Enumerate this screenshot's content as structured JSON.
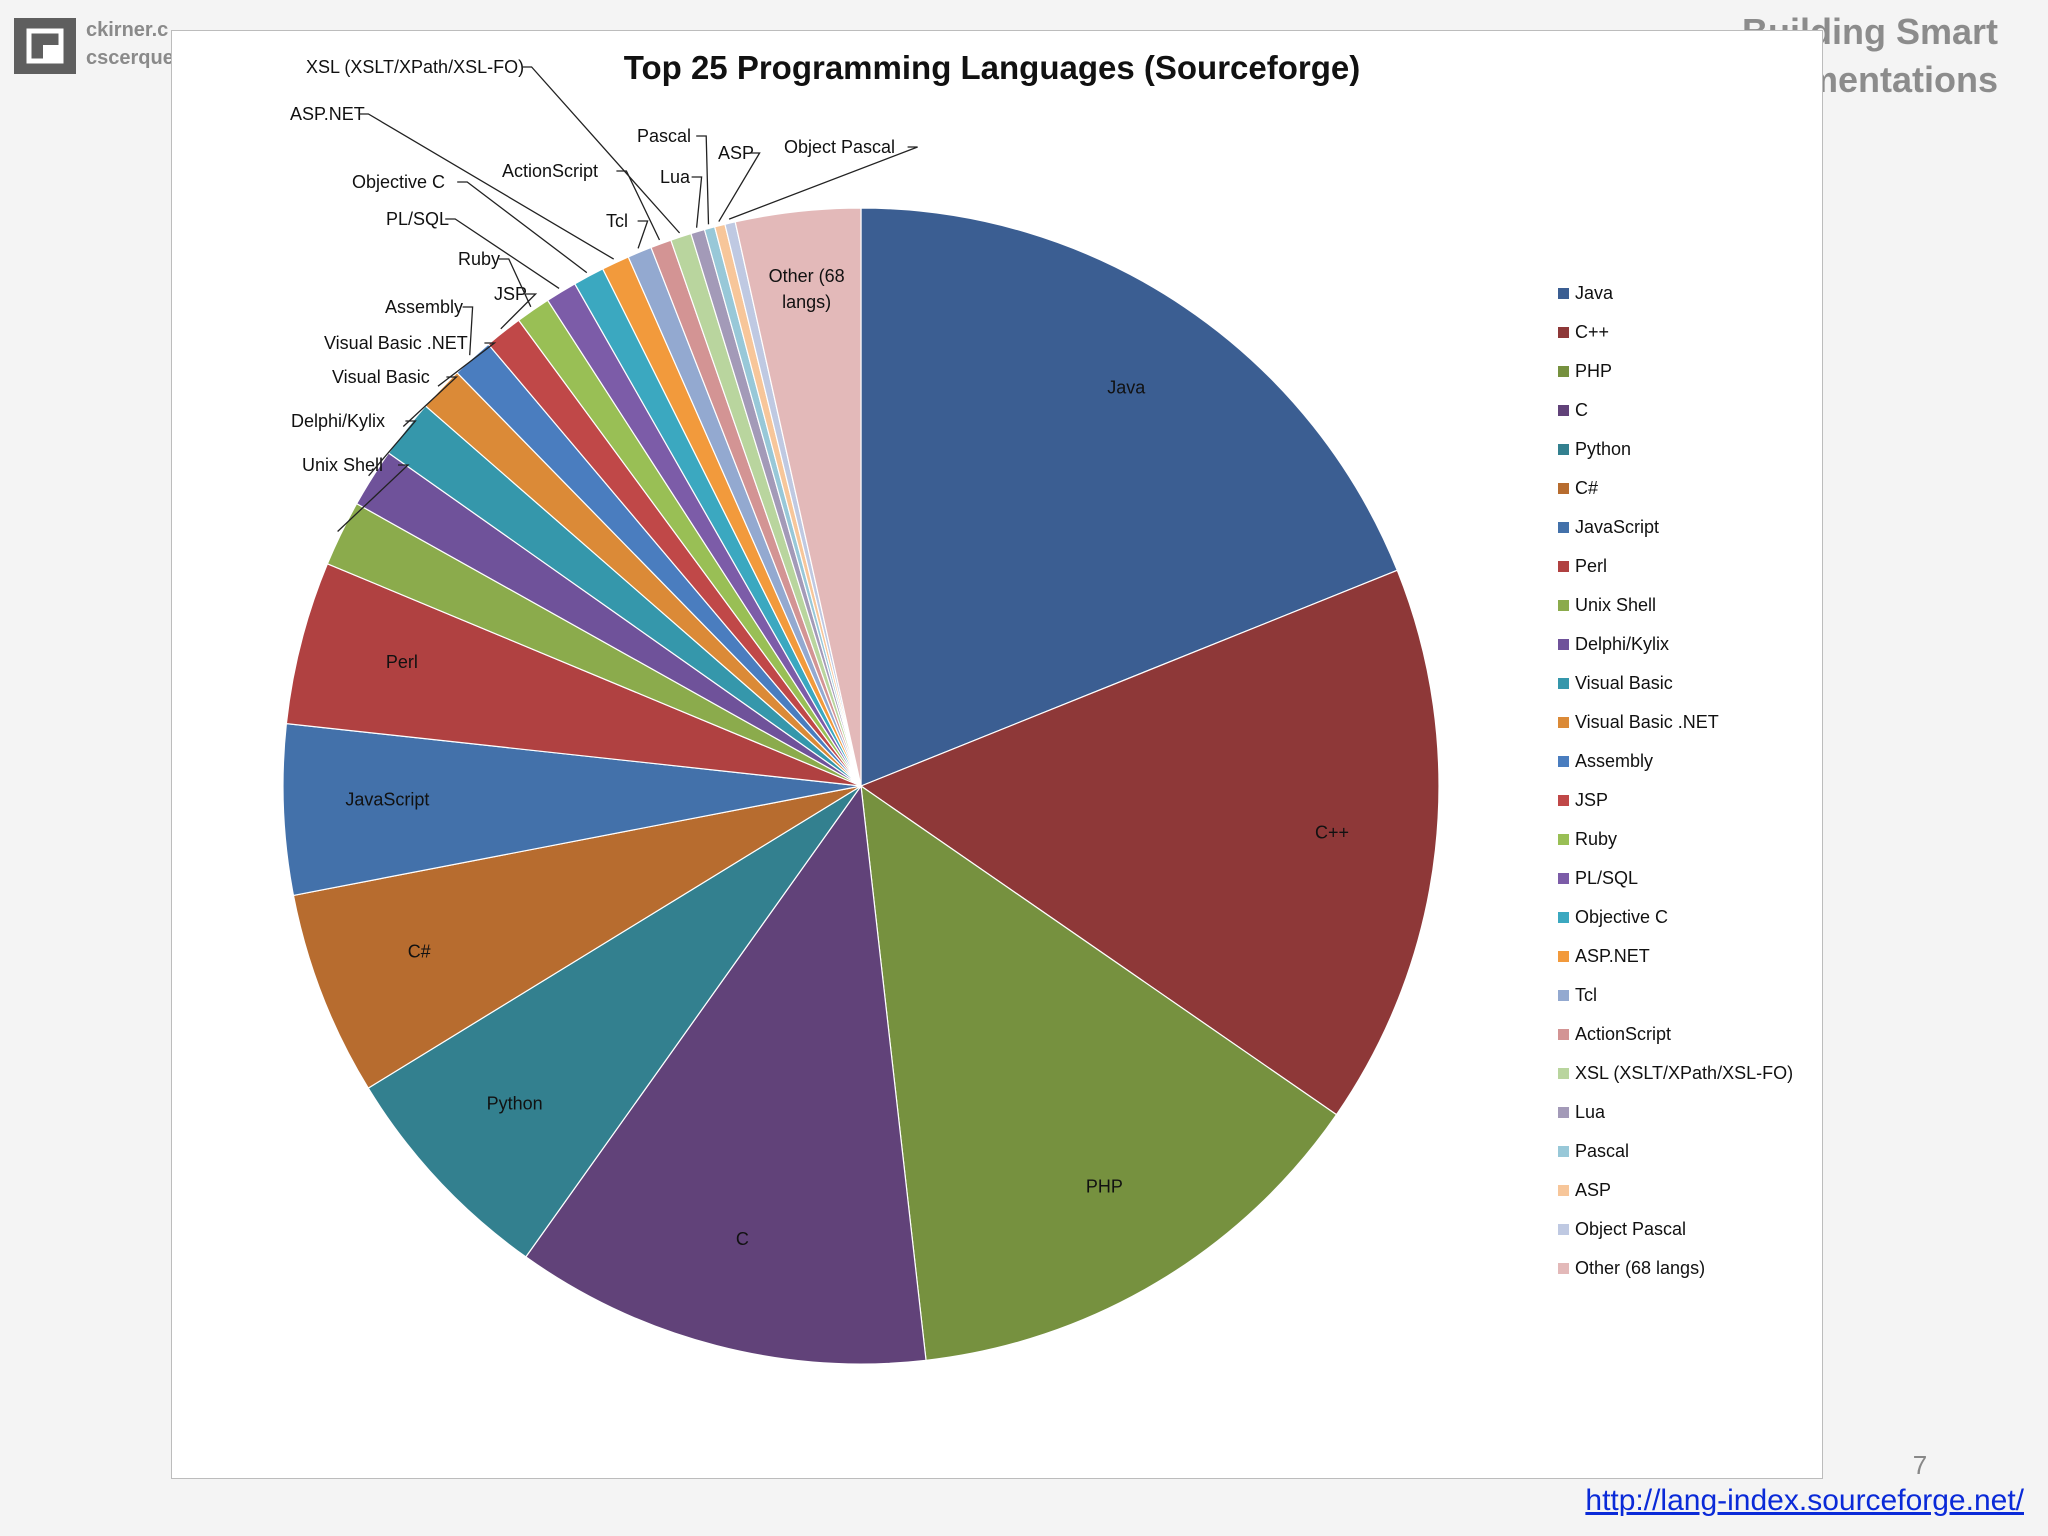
{
  "header": {
    "left_line1": "ckirner.c",
    "left_line2": "cscerque",
    "right_line1": "Building Smart",
    "right_line2": "mentations"
  },
  "slide_number": "7",
  "source_link": "http://lang-index.sourceforge.net/",
  "colors": {
    "link": "#0a2ad8",
    "panel_border": "#bcbcbc"
  },
  "chart_data": {
    "type": "pie",
    "title": "Top 25 Programming Languages (Sourceforge)",
    "legend_position": "right",
    "slices": [
      {
        "label": "Java",
        "value": 19.5,
        "color": "#3b5e92",
        "slice_label": "Java"
      },
      {
        "label": "C++",
        "value": 16.2,
        "color": "#8e3838",
        "slice_label": "C++"
      },
      {
        "label": "PHP",
        "value": 14.0,
        "color": "#76913f",
        "slice_label": "PHP"
      },
      {
        "label": "C",
        "value": 12.0,
        "color": "#614279",
        "slice_label": "C"
      },
      {
        "label": "Python",
        "value": 6.6,
        "color": "#33808f",
        "slice_label": "Python"
      },
      {
        "label": "C#",
        "value": 5.9,
        "color": "#b76c2f",
        "slice_label": "C#"
      },
      {
        "label": "JavaScript",
        "value": 4.9,
        "color": "#4371aa",
        "slice_label": "JavaScript"
      },
      {
        "label": "Perl",
        "value": 4.7,
        "color": "#b04141",
        "slice_label": "Perl"
      },
      {
        "label": "Unix Shell",
        "value": 1.9,
        "color": "#8bab4c",
        "slice_label": "Unix Shell"
      },
      {
        "label": "Delphi/Kylix",
        "value": 1.7,
        "color": "#6f529a",
        "slice_label": "Delphi/Kylix"
      },
      {
        "label": "Visual Basic",
        "value": 1.7,
        "color": "#3597ab",
        "slice_label": "Visual Basic"
      },
      {
        "label": "Visual Basic .NET",
        "value": 1.3,
        "color": "#db8a37",
        "slice_label": "Visual Basic .NET"
      },
      {
        "label": "Assembly",
        "value": 1.2,
        "color": "#4a7dbf",
        "slice_label": "Assembly"
      },
      {
        "label": "JSP",
        "value": 1.1,
        "color": "#c04848",
        "slice_label": "JSP"
      },
      {
        "label": "Ruby",
        "value": 1.0,
        "color": "#99bf55",
        "slice_label": "Ruby"
      },
      {
        "label": "PL/SQL",
        "value": 0.9,
        "color": "#7c5ca8",
        "slice_label": "PL/SQL"
      },
      {
        "label": "Objective C",
        "value": 0.9,
        "color": "#3ba8c0",
        "slice_label": "Objective C"
      },
      {
        "label": "ASP.NET",
        "value": 0.8,
        "color": "#f29a3c",
        "slice_label": "ASP.NET"
      },
      {
        "label": "Tcl",
        "value": 0.7,
        "color": "#93a9d0",
        "slice_label": "Tcl"
      },
      {
        "label": "ActionScript",
        "value": 0.6,
        "color": "#d39494",
        "slice_label": "ActionScript"
      },
      {
        "label": "XSL (XSLT/XPath/XSL-FO)",
        "value": 0.6,
        "color": "#b9d59e",
        "slice_label": "XSL (XSLT/XPath/XSL-FO)"
      },
      {
        "label": "Lua",
        "value": 0.4,
        "color": "#a39ab8",
        "slice_label": "Lua"
      },
      {
        "label": "Pascal",
        "value": 0.3,
        "color": "#98c8d8",
        "slice_label": "Pascal"
      },
      {
        "label": "ASP",
        "value": 0.3,
        "color": "#f7c69a",
        "slice_label": "ASP"
      },
      {
        "label": "Object Pascal",
        "value": 0.3,
        "color": "#bfc9e2",
        "slice_label": "Object Pascal"
      },
      {
        "label": "Other (68 langs)",
        "value": 3.6,
        "color": "#e3b9b9",
        "slice_label": "Other (68 langs)"
      }
    ]
  }
}
